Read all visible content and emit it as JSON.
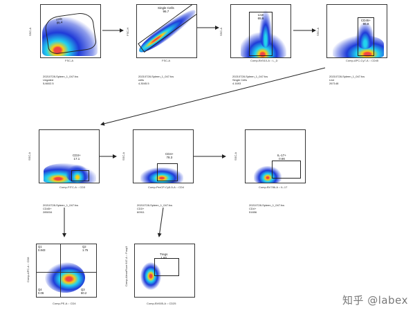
{
  "plots": {
    "p1": {
      "yaxis": "SSC-A",
      "xaxis": "FSC-A",
      "gate_name": "cells",
      "gate_value": "86.4",
      "file": "20210728-Spleen_1_047.fcs",
      "population": "Ungated",
      "count": "5,6602.5"
    },
    "p2": {
      "yaxis": "FSC-H",
      "xaxis": "FSC-A",
      "gate_name": "Single Cells",
      "gate_value": "96.7",
      "file": "20210728-Spleen_1_047.fcs",
      "population": "cells",
      "count": "4,3045.5"
    },
    "p3": {
      "yaxis": "SSC-A",
      "xaxis": "Comp-BV510-A :: L_D",
      "gate_name": "Live",
      "gate_value": "65.6",
      "file": "20210728-Spleen_1_047.fcs",
      "population": "Single Cells",
      "count": "4.1693"
    },
    "p4": {
      "yaxis": "SSC-A",
      "xaxis": "Comp-APC-Cy7-A :: CD45",
      "gate_name": "CD45+",
      "gate_value": "96.8",
      "file": "20210728-Spleen_1_047.fcs",
      "population": "Live",
      "count": "267148"
    },
    "p5": {
      "yaxis": "SSC-A",
      "xaxis": "Comp-FITC-A :: CD3",
      "gate_name": "CD3+",
      "gate_value": "17.1",
      "file": "20210728-Spleen_1_047.fcs",
      "population": "CD45+",
      "count": "285034"
    },
    "p6": {
      "yaxis": "SSC-A",
      "xaxis": "Comp-PerCP-Cy5-5-A :: CD4",
      "gate_name": "CD4+",
      "gate_value": "78.3",
      "file": "20210728-Spleen_1_047.fcs",
      "population": "CD3+",
      "count": "60911"
    },
    "p7": {
      "yaxis": "SSC-A",
      "xaxis": "Comp-BV786-A :: IL-17",
      "gate_name": "IL-17+",
      "gate_value": "0.66",
      "file": "20210728-Spleen_1_047.fcs",
      "population": "CD4+",
      "count": "51656"
    },
    "p8": {
      "yaxis": "Comp-APC-A :: CD8",
      "xaxis": "Comp-PE-A :: CD4",
      "q1_name": "Q1",
      "q1_value": "0.843",
      "q2_name": "Q2",
      "q2_value": "1.75",
      "q3_name": "Q3",
      "q3_value": "60.2",
      "q4_name": "Q4",
      "q4_value": "0.06"
    },
    "p9": {
      "yaxis": "Comp-AlexaFluor 647-A :: Foxp3",
      "xaxis": "Comp-BV605-A :: CD25",
      "gate_name": "Tregs",
      "gate_value": "1.60"
    }
  },
  "watermark": "知乎 @labex",
  "colors": {
    "cloud_blue": "#1f3bd8",
    "cloud_cyan": "#22d3ee",
    "cloud_yellow": "#facc15",
    "cloud_red": "#ef4444",
    "arrow": "#222222"
  }
}
